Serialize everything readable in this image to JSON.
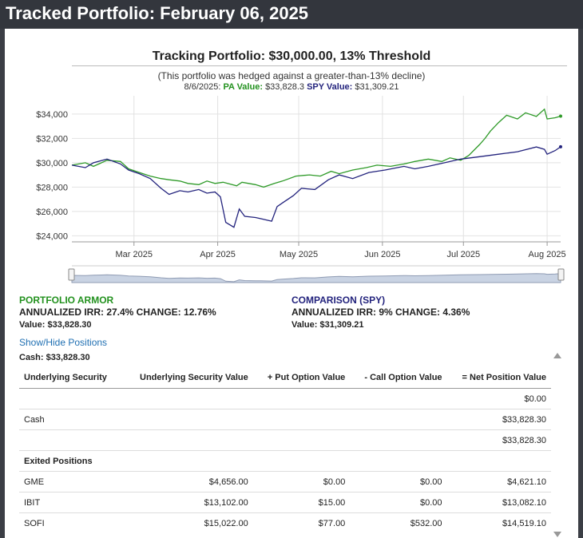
{
  "header": {
    "title": "Tracked Portfolio: February 06, 2025"
  },
  "chart_data": {
    "type": "line",
    "title": "Tracking Portfolio: $30,000.00, 13% Threshold",
    "subtitle": "(This portfolio was hedged against a greater-than-13% decline)",
    "tooltip": {
      "date": "8/6/2025:",
      "pa_label": "PA Value:",
      "pa_value": "$33,828.3",
      "spy_label": "SPY Value:",
      "spy_value": "$31,309.21"
    },
    "x_start": "2025-02-06",
    "x_end": "2025-08-06",
    "xticks": [
      {
        "label": "Mar 2025",
        "date": "2025-03-01"
      },
      {
        "label": "Apr 2025",
        "date": "2025-04-01"
      },
      {
        "label": "May 2025",
        "date": "2025-05-01"
      },
      {
        "label": "Jun 2025",
        "date": "2025-06-01"
      },
      {
        "label": "Jul 2025",
        "date": "2025-07-01"
      },
      {
        "label": "Aug 2025",
        "date": "2025-08-01"
      }
    ],
    "ylim": [
      23500,
      35500
    ],
    "yticks": [
      {
        "label": "$24,000",
        "value": 24000
      },
      {
        "label": "$26,000",
        "value": 26000
      },
      {
        "label": "$28,000",
        "value": 28000
      },
      {
        "label": "$30,000",
        "value": 30000
      },
      {
        "label": "$32,000",
        "value": 32000
      },
      {
        "label": "$34,000",
        "value": 34000
      }
    ],
    "series": [
      {
        "name": "PA Value",
        "color": "#2e9a28",
        "points": [
          [
            "2025-02-06",
            29800
          ],
          [
            "2025-02-11",
            30000
          ],
          [
            "2025-02-14",
            29700
          ],
          [
            "2025-02-19",
            30200
          ],
          [
            "2025-02-24",
            30100
          ],
          [
            "2025-02-27",
            29500
          ],
          [
            "2025-03-03",
            29200
          ],
          [
            "2025-03-07",
            28900
          ],
          [
            "2025-03-11",
            28700
          ],
          [
            "2025-03-14",
            28600
          ],
          [
            "2025-03-18",
            28500
          ],
          [
            "2025-03-21",
            28300
          ],
          [
            "2025-03-25",
            28200
          ],
          [
            "2025-03-28",
            28500
          ],
          [
            "2025-03-31",
            28300
          ],
          [
            "2025-04-03",
            28400
          ],
          [
            "2025-04-08",
            28100
          ],
          [
            "2025-04-10",
            28400
          ],
          [
            "2025-04-15",
            28200
          ],
          [
            "2025-04-18",
            28000
          ],
          [
            "2025-04-22",
            28300
          ],
          [
            "2025-04-25",
            28500
          ],
          [
            "2025-04-30",
            28900
          ],
          [
            "2025-05-05",
            29000
          ],
          [
            "2025-05-09",
            28900
          ],
          [
            "2025-05-13",
            29300
          ],
          [
            "2025-05-16",
            29100
          ],
          [
            "2025-05-21",
            29400
          ],
          [
            "2025-05-26",
            29600
          ],
          [
            "2025-05-30",
            29800
          ],
          [
            "2025-06-04",
            29700
          ],
          [
            "2025-06-09",
            29900
          ],
          [
            "2025-06-13",
            30100
          ],
          [
            "2025-06-18",
            30300
          ],
          [
            "2025-06-23",
            30100
          ],
          [
            "2025-06-26",
            30400
          ],
          [
            "2025-06-30",
            30200
          ],
          [
            "2025-07-03",
            30600
          ],
          [
            "2025-07-07",
            31500
          ],
          [
            "2025-07-09",
            32000
          ],
          [
            "2025-07-11",
            32600
          ],
          [
            "2025-07-14",
            33300
          ],
          [
            "2025-07-17",
            33900
          ],
          [
            "2025-07-21",
            33600
          ],
          [
            "2025-07-24",
            34100
          ],
          [
            "2025-07-28",
            33800
          ],
          [
            "2025-07-31",
            34400
          ],
          [
            "2025-08-01",
            33600
          ],
          [
            "2025-08-04",
            33700
          ],
          [
            "2025-08-06",
            33828
          ]
        ]
      },
      {
        "name": "SPY Value",
        "color": "#23237d",
        "points": [
          [
            "2025-02-06",
            29800
          ],
          [
            "2025-02-11",
            29600
          ],
          [
            "2025-02-14",
            30000
          ],
          [
            "2025-02-19",
            30300
          ],
          [
            "2025-02-24",
            29900
          ],
          [
            "2025-02-27",
            29400
          ],
          [
            "2025-03-03",
            29100
          ],
          [
            "2025-03-07",
            28700
          ],
          [
            "2025-03-11",
            27900
          ],
          [
            "2025-03-14",
            27400
          ],
          [
            "2025-03-18",
            27700
          ],
          [
            "2025-03-21",
            27600
          ],
          [
            "2025-03-25",
            27800
          ],
          [
            "2025-03-28",
            27500
          ],
          [
            "2025-03-31",
            27600
          ],
          [
            "2025-04-02",
            27200
          ],
          [
            "2025-04-04",
            25100
          ],
          [
            "2025-04-07",
            24700
          ],
          [
            "2025-04-09",
            26200
          ],
          [
            "2025-04-11",
            25600
          ],
          [
            "2025-04-15",
            25500
          ],
          [
            "2025-04-17",
            25400
          ],
          [
            "2025-04-21",
            25200
          ],
          [
            "2025-04-23",
            26400
          ],
          [
            "2025-04-25",
            26700
          ],
          [
            "2025-04-29",
            27300
          ],
          [
            "2025-05-02",
            27900
          ],
          [
            "2025-05-07",
            27800
          ],
          [
            "2025-05-12",
            28600
          ],
          [
            "2025-05-16",
            29000
          ],
          [
            "2025-05-21",
            28700
          ],
          [
            "2025-05-27",
            29200
          ],
          [
            "2025-06-02",
            29400
          ],
          [
            "2025-06-09",
            29700
          ],
          [
            "2025-06-13",
            29500
          ],
          [
            "2025-06-18",
            29700
          ],
          [
            "2025-06-24",
            30000
          ],
          [
            "2025-06-30",
            30300
          ],
          [
            "2025-07-07",
            30500
          ],
          [
            "2025-07-14",
            30700
          ],
          [
            "2025-07-21",
            30900
          ],
          [
            "2025-07-28",
            31300
          ],
          [
            "2025-07-31",
            31100
          ],
          [
            "2025-08-01",
            30700
          ],
          [
            "2025-08-04",
            31000
          ],
          [
            "2025-08-06",
            31309
          ]
        ]
      }
    ],
    "grid": true,
    "legend": "none"
  },
  "portfolio": {
    "title": "PORTFOLIO ARMOR",
    "title_color": "#22911e",
    "line": "ANNUALIZED IRR: 27.4% CHANGE: 12.76%",
    "value": "Value: $33,828.30"
  },
  "comparison": {
    "title": "COMPARISON (SPY)",
    "title_color": "#23237d",
    "line": "ANNUALIZED IRR: 9% CHANGE: 4.36%",
    "value": "Value: $31,309.21"
  },
  "links": {
    "toggle_positions": "Show/Hide Positions"
  },
  "cash_line": "Cash: $33,828.30",
  "table": {
    "headers": [
      "Underlying Security",
      "Underlying Security Value",
      "+ Put Option Value",
      "- Call Option Value",
      "= Net Position Value"
    ],
    "rows": [
      {
        "cells": [
          "",
          "",
          "",
          "",
          "$0.00"
        ]
      },
      {
        "cells": [
          "Cash",
          "",
          "",
          "",
          "$33,828.30"
        ]
      },
      {
        "cells": [
          "",
          "",
          "",
          "",
          "$33,828.30"
        ]
      },
      {
        "cells": [
          "Exited Positions",
          "",
          "",
          "",
          ""
        ],
        "group": true
      },
      {
        "cells": [
          "GME",
          "$4,656.00",
          "$0.00",
          "$0.00",
          "$4,621.10"
        ]
      },
      {
        "cells": [
          "IBIT",
          "$13,102.00",
          "$15.00",
          "$0.00",
          "$13,082.10"
        ]
      },
      {
        "cells": [
          "SOFI",
          "$15,022.00",
          "$77.00",
          "$532.00",
          "$14,519.10"
        ]
      }
    ]
  }
}
